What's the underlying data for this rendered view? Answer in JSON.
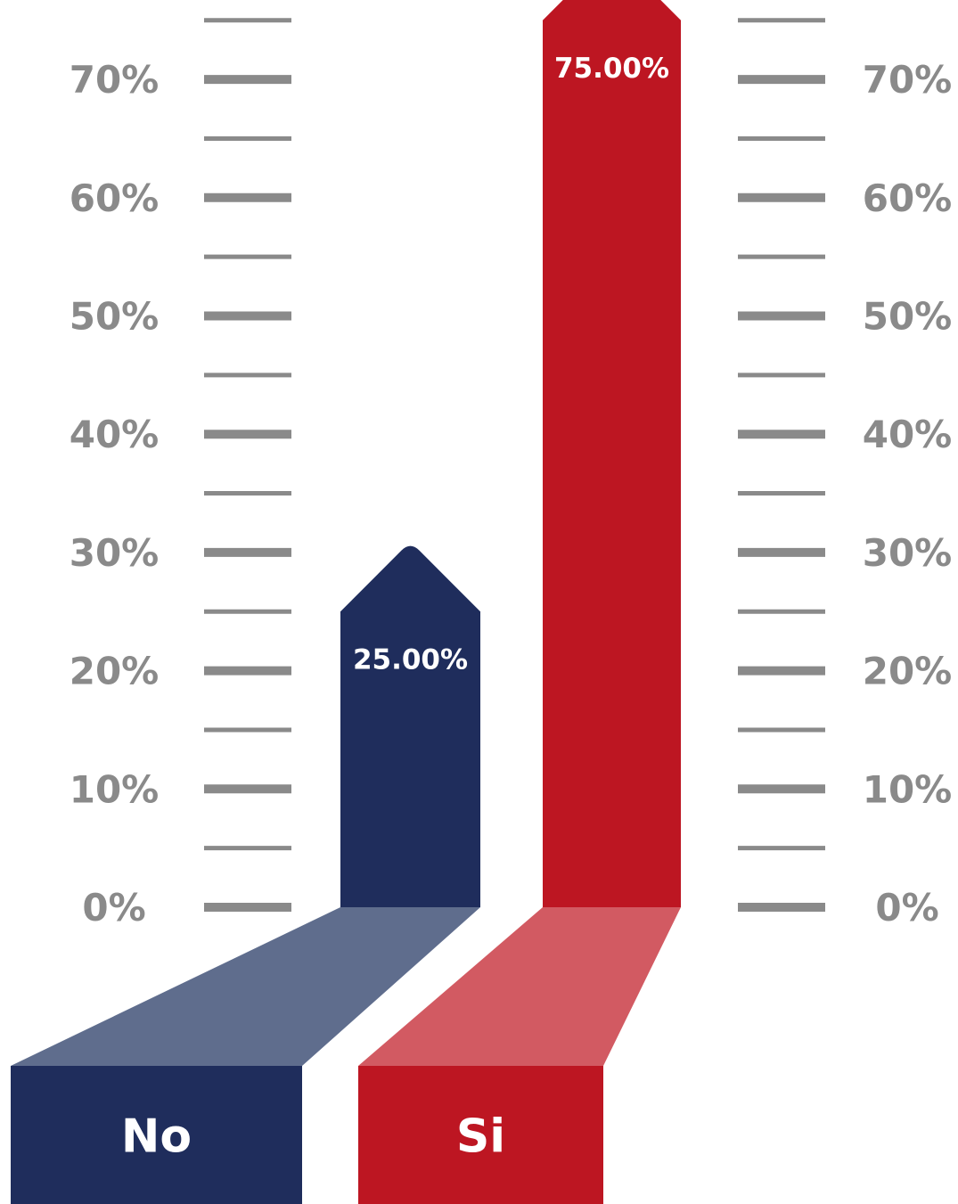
{
  "chart_data": {
    "type": "bar",
    "categories": [
      "No",
      "Si"
    ],
    "values": [
      25.0,
      75.0
    ],
    "value_labels": [
      "25.00%",
      "75.00%"
    ],
    "ylim": [
      0,
      75
    ],
    "y_ticks": [
      0,
      10,
      20,
      30,
      40,
      50,
      60,
      70
    ],
    "y_tick_labels": [
      "0%",
      "10%",
      "20%",
      "30%",
      "40%",
      "50%",
      "60%",
      "70%"
    ],
    "minor_tick_step": 5,
    "axes": [
      "left",
      "right"
    ],
    "colors": {
      "No": {
        "bar": "#1f2d5c",
        "base": "#5f6d8d"
      },
      "Si": {
        "bar": "#bd1622",
        "base": "#d25a62"
      },
      "tick": "#8a8a8a",
      "tick_text": "#8a8a8a"
    }
  }
}
